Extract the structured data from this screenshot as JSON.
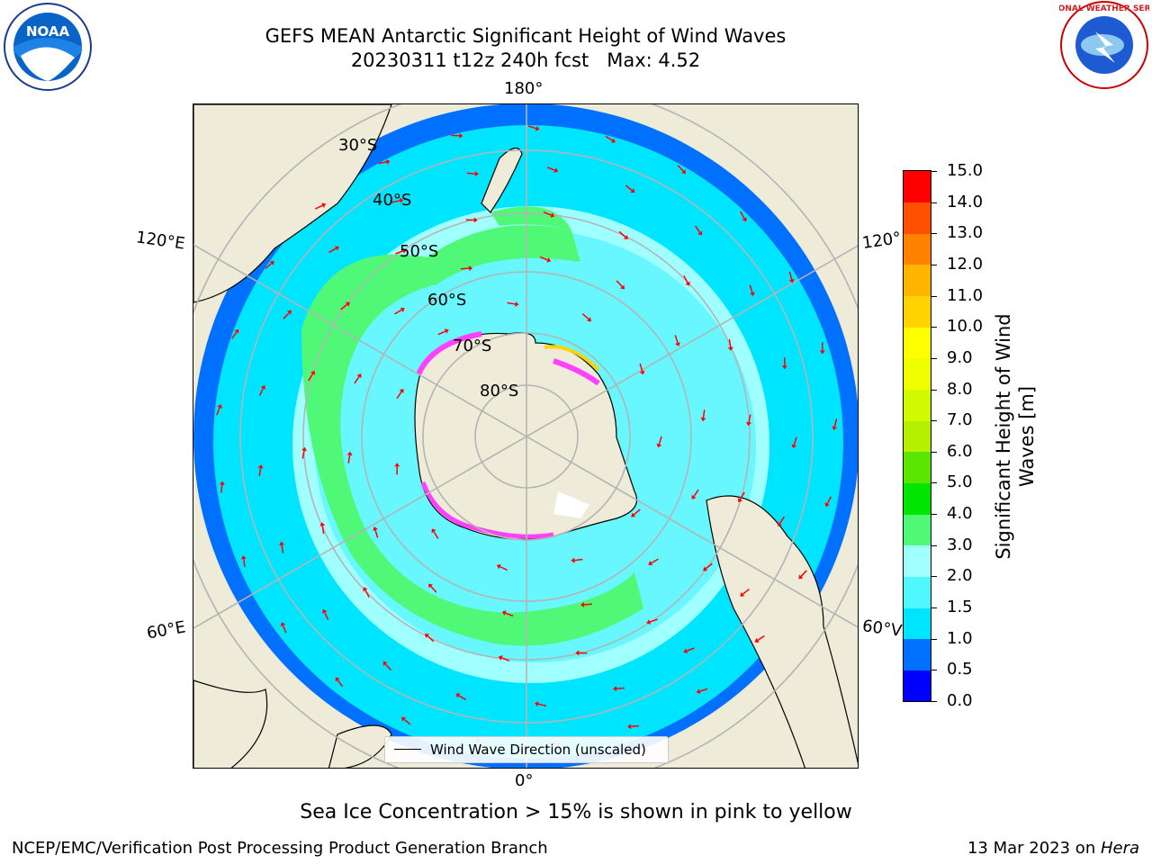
{
  "title_line1": "GEFS MEAN Antarctic Significant Height of Wind Waves",
  "title_line2": "20230311 t12z 240h fcst   Max: 4.52",
  "longitude_labels": {
    "top": "180°",
    "bottom": "0°",
    "upper_left": "120°E",
    "lower_left": "60°E",
    "upper_right": "120°",
    "lower_right": "60°V"
  },
  "latitude_labels": [
    "30°S",
    "40°S",
    "50°S",
    "60°S",
    "70°S",
    "80°S"
  ],
  "legend_label": "Wind Wave Direction (unscaled)",
  "colorbar": {
    "label": "Significant Height of Wind Waves [m]",
    "ticks": [
      "0.0",
      "0.5",
      "1.0",
      "1.5",
      "2.0",
      "3.0",
      "4.0",
      "5.0",
      "6.0",
      "7.0",
      "8.0",
      "9.0",
      "10.0",
      "11.0",
      "12.0",
      "13.0",
      "14.0",
      "15.0"
    ],
    "colors": [
      "#0000ff",
      "#0070ff",
      "#00e5ff",
      "#4ff8ff",
      "#a0ffff",
      "#50f878",
      "#00e600",
      "#5ae600",
      "#b4f000",
      "#d2fa00",
      "#f0ff00",
      "#ffff00",
      "#ffd200",
      "#ffb400",
      "#ff8200",
      "#ff5000",
      "#ff0000"
    ]
  },
  "colors": {
    "land": "#eeebd9",
    "ocean_low": "#0070ff",
    "ocean_mid": "#00e5ff",
    "ocean_light": "#a0ffff",
    "ocean_green": "#50f878",
    "arrow": "#ff0000",
    "sea_ice": "#ff40ff",
    "grid": "#b4b4b4"
  },
  "subtitle": "Sea Ice Concentration > 15% is shown in pink to yellow",
  "footer_left": "NCEP/EMC/Verification Post Processing Product Generation Branch",
  "footer_right_date": "13 Mar 2023 on ",
  "footer_right_system": "Hera",
  "logos": {
    "left": "NOAA",
    "right": "NATIONAL WEATHER SERVICE"
  }
}
